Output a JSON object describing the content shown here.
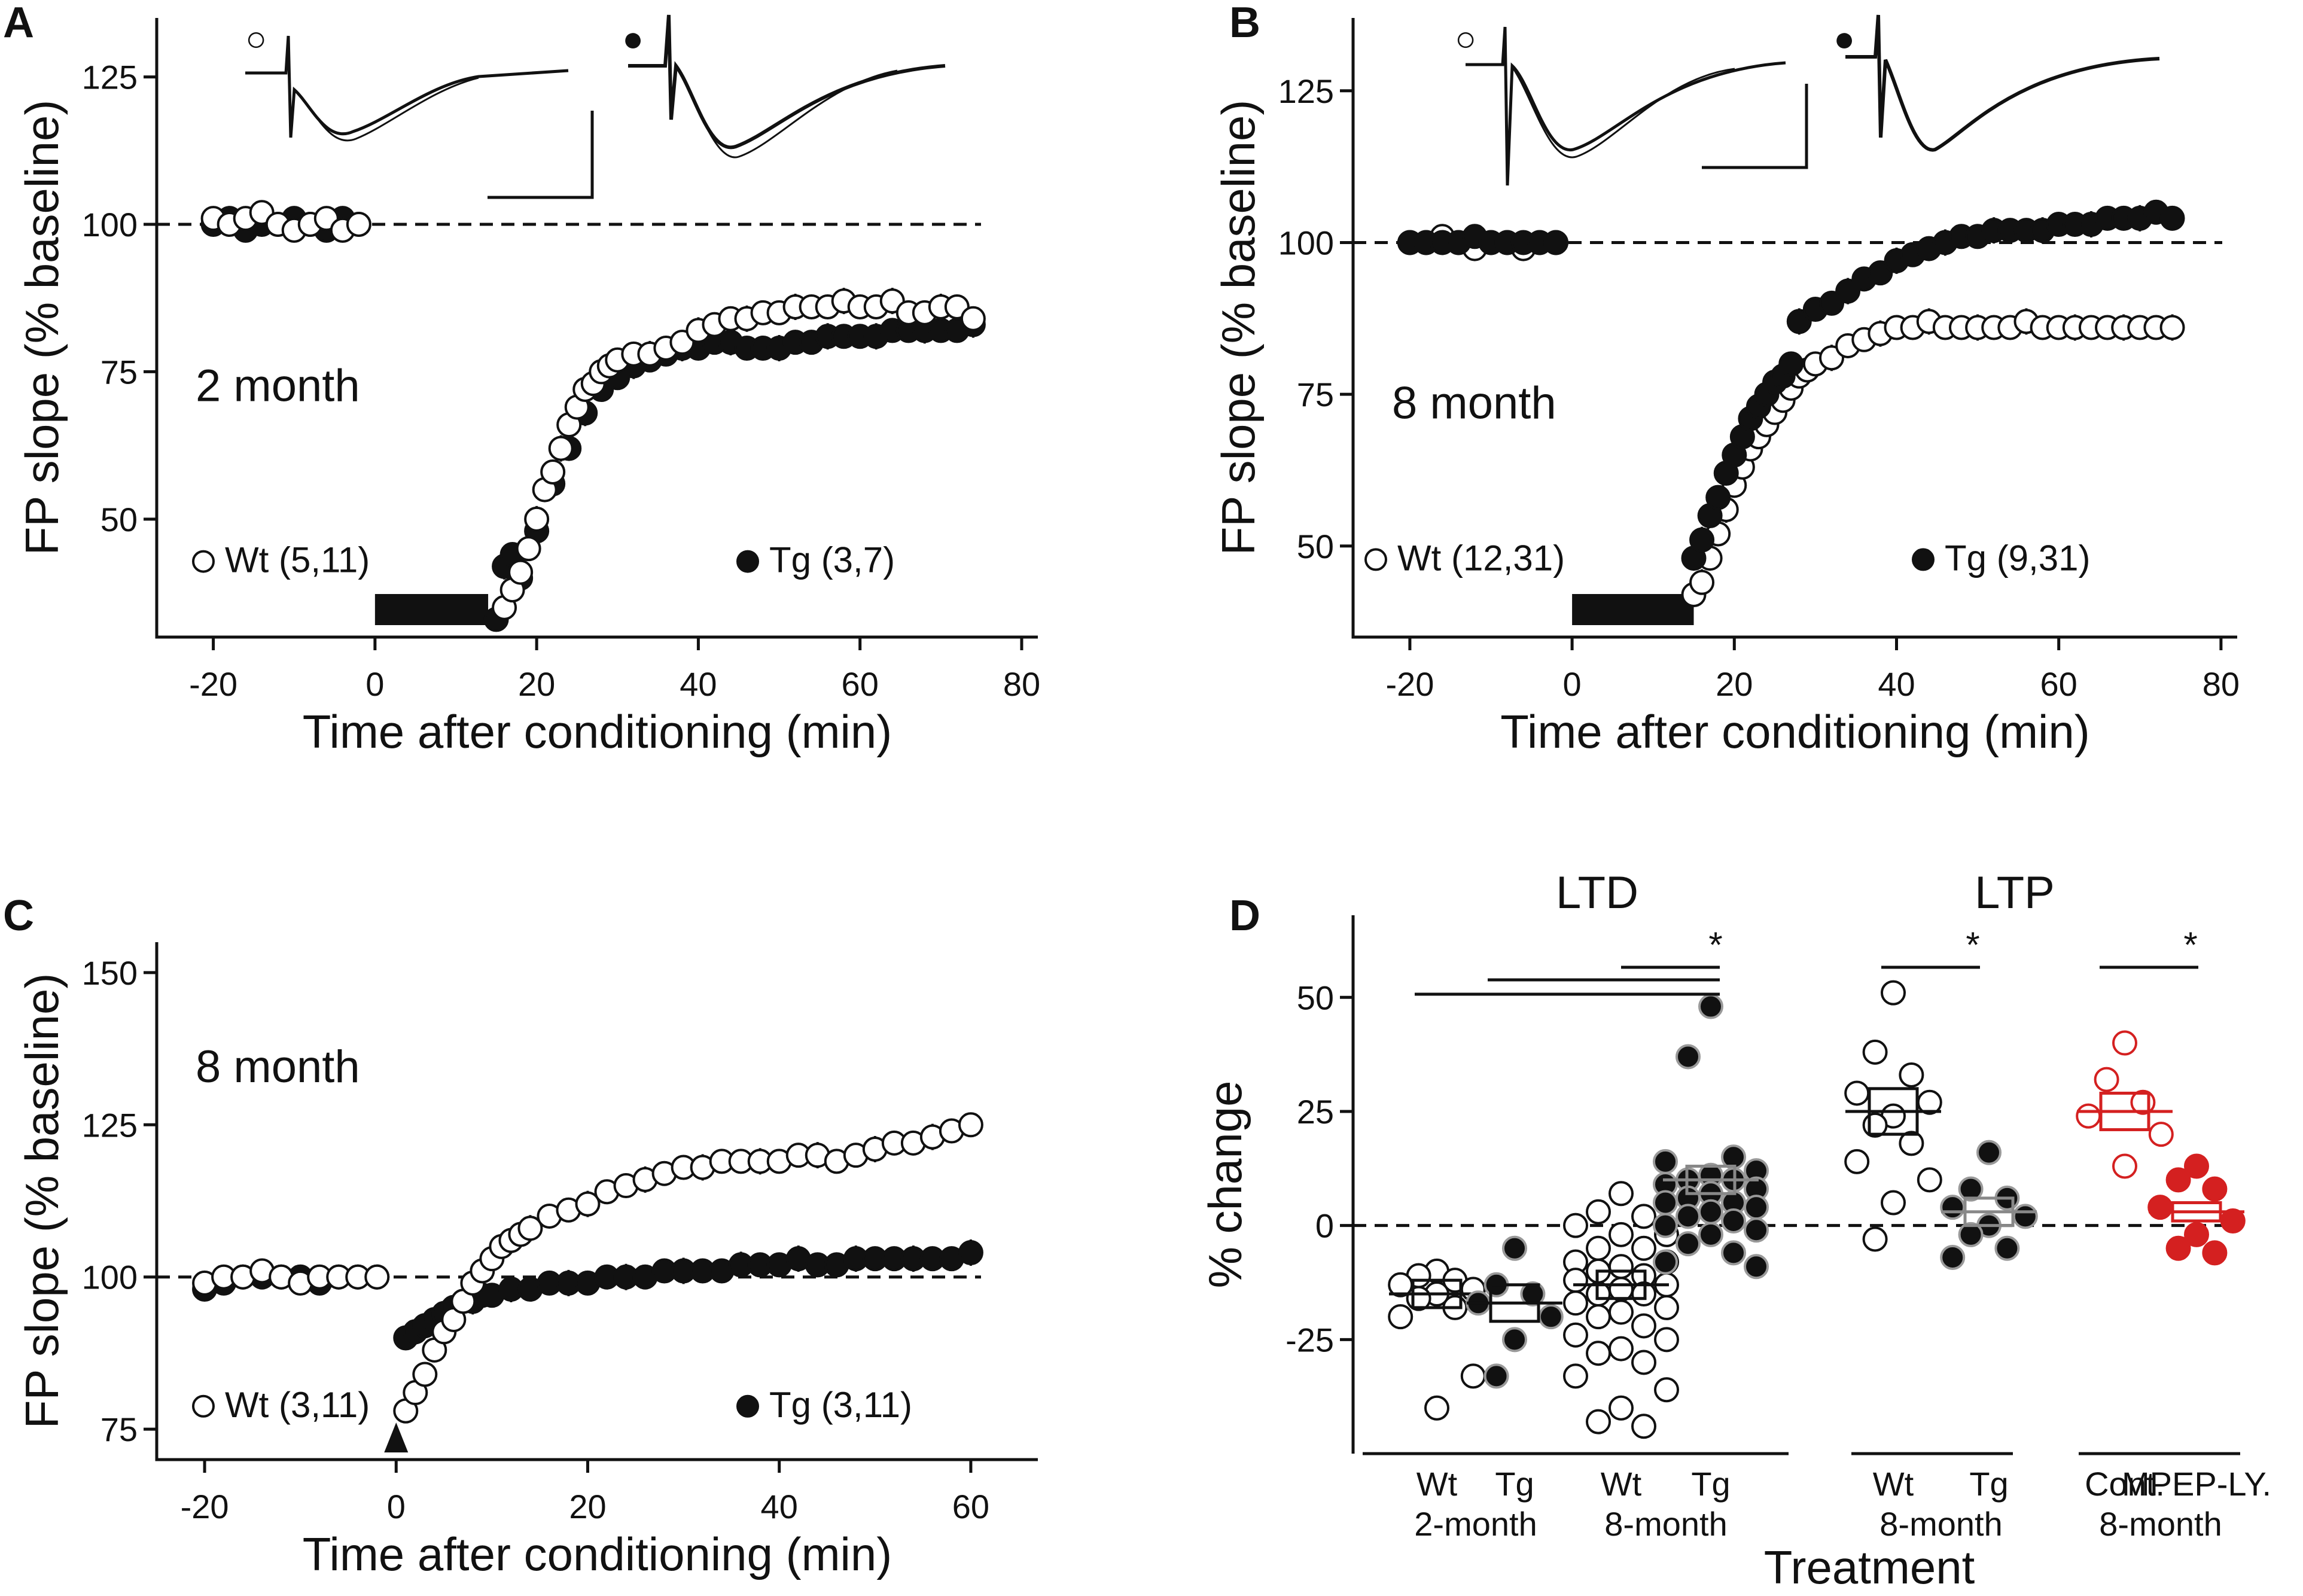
{
  "chart_data": [
    {
      "panel": "A",
      "type": "scatter",
      "age_label": "2 month",
      "xlabel": "Time after conditioning (min)",
      "ylabel": "FP slope (% baseline)",
      "xlim": [
        -27,
        82
      ],
      "ylim": [
        30,
        135
      ],
      "xticks": [
        "-20",
        "0",
        "20",
        "40",
        "60",
        "80"
      ],
      "yticks": [
        "50",
        "75",
        "100",
        "125"
      ],
      "baseline": 100,
      "conditioning_bar": [
        0,
        14
      ],
      "legend": [
        {
          "symbol": "○",
          "label": "Wt (5,11)",
          "fill": "#ffffff"
        },
        {
          "symbol": "●",
          "label": "Tg (3,7)",
          "fill": "#111111"
        }
      ],
      "series": [
        {
          "name": "Wt",
          "fill": "#ffffff",
          "x": [
            -20,
            -18,
            -16,
            -14,
            -12,
            -10,
            -8,
            -6,
            -4,
            -2,
            16,
            17,
            18,
            19,
            20,
            21,
            22,
            23,
            24,
            25,
            26,
            27,
            28,
            29,
            30,
            32,
            34,
            36,
            38,
            40,
            42,
            44,
            46,
            48,
            50,
            52,
            54,
            56,
            58,
            60,
            62,
            64,
            66,
            68,
            70,
            72,
            74
          ],
          "y": [
            101,
            100,
            101,
            102,
            100,
            99,
            100,
            101,
            99,
            100,
            35,
            38,
            41,
            45,
            50,
            55,
            58,
            62,
            66,
            69,
            72,
            73,
            75,
            76,
            77,
            78,
            78,
            79,
            80,
            82,
            83,
            84,
            84,
            85,
            85,
            86,
            86,
            86,
            87,
            86,
            86,
            87,
            85,
            85,
            86,
            86,
            84
          ]
        },
        {
          "name": "Tg",
          "fill": "#111111",
          "x": [
            -20,
            -18,
            -16,
            -14,
            -12,
            -10,
            -8,
            -6,
            -4,
            -2,
            15,
            16,
            17,
            18,
            20,
            22,
            24,
            26,
            28,
            30,
            32,
            34,
            36,
            38,
            40,
            42,
            44,
            46,
            48,
            50,
            52,
            54,
            56,
            58,
            60,
            62,
            64,
            66,
            68,
            70,
            72,
            74
          ],
          "y": [
            100,
            101,
            99,
            100,
            100,
            101,
            100,
            99,
            101,
            100,
            33,
            42,
            44,
            40,
            48,
            56,
            62,
            68,
            72,
            74,
            76,
            77,
            78,
            79,
            79,
            80,
            80,
            79,
            79,
            79,
            80,
            80,
            81,
            81,
            81,
            81,
            82,
            82,
            82,
            82,
            82,
            83
          ]
        }
      ],
      "trace_labels": [
        "○",
        "●"
      ]
    },
    {
      "panel": "B",
      "type": "scatter",
      "age_label": "8 month",
      "xlabel": "Time after conditioning (min)",
      "ylabel": "FP slope (% baseline)",
      "xlim": [
        -27,
        82
      ],
      "ylim": [
        35,
        137
      ],
      "xticks": [
        "-20",
        "0",
        "20",
        "40",
        "60",
        "80"
      ],
      "yticks": [
        "50",
        "75",
        "100",
        "125"
      ],
      "baseline": 100,
      "conditioning_bar": [
        0,
        15
      ],
      "legend": [
        {
          "symbol": "○",
          "label": "Wt (12,31)",
          "fill": "#ffffff"
        },
        {
          "symbol": "●",
          "label": "Tg (9,31)",
          "fill": "#111111"
        }
      ],
      "series": [
        {
          "name": "Wt",
          "fill": "#ffffff",
          "x": [
            -20,
            -18,
            -16,
            -14,
            -12,
            -10,
            -8,
            -6,
            -4,
            -2,
            15,
            16,
            17,
            18,
            19,
            20,
            21,
            22,
            23,
            24,
            25,
            26,
            27,
            28,
            29,
            30,
            32,
            34,
            36,
            38,
            40,
            42,
            44,
            46,
            48,
            50,
            52,
            54,
            56,
            58,
            60,
            62,
            64,
            66,
            68,
            70,
            72,
            74
          ],
          "y": [
            100,
            100,
            101,
            100,
            99,
            100,
            100,
            99,
            100,
            100,
            42,
            44,
            48,
            52,
            56,
            60,
            63,
            66,
            68,
            70,
            72,
            74,
            76,
            78,
            79,
            80,
            81,
            83,
            84,
            85,
            86,
            86,
            87,
            86,
            86,
            86,
            86,
            86,
            87,
            86,
            86,
            86,
            86,
            86,
            86,
            86,
            86,
            86
          ]
        },
        {
          "name": "Tg",
          "fill": "#111111",
          "x": [
            -20,
            -18,
            -16,
            -14,
            -12,
            -10,
            -8,
            -6,
            -4,
            -2,
            15,
            16,
            17,
            18,
            19,
            20,
            21,
            22,
            23,
            24,
            25,
            26,
            27,
            28,
            30,
            32,
            34,
            36,
            38,
            40,
            42,
            44,
            46,
            48,
            50,
            52,
            54,
            56,
            58,
            60,
            62,
            64,
            66,
            68,
            70,
            72,
            74
          ],
          "y": [
            100,
            100,
            100,
            100,
            101,
            100,
            100,
            100,
            100,
            100,
            48,
            51,
            55,
            58,
            62,
            65,
            68,
            71,
            73,
            75,
            77,
            78,
            80,
            87,
            89,
            90,
            92,
            94,
            95,
            97,
            98,
            99,
            100,
            101,
            101,
            102,
            102,
            102,
            102,
            103,
            103,
            103,
            104,
            104,
            104,
            105,
            104
          ]
        }
      ],
      "trace_labels": [
        "○",
        "●"
      ]
    },
    {
      "panel": "C",
      "type": "scatter",
      "age_label": "8 month",
      "xlabel": "Time after conditioning (min)",
      "ylabel": "FP slope (% baseline)",
      "xlim": [
        -25,
        67
      ],
      "ylim": [
        70,
        155
      ],
      "xticks": [
        "-20",
        "0",
        "20",
        "40",
        "60"
      ],
      "yticks": [
        "75",
        "100",
        "125",
        "150"
      ],
      "baseline": 100,
      "stimulus_marker": 0,
      "legend": [
        {
          "symbol": "○",
          "label": "Wt (3,11)",
          "fill": "#ffffff"
        },
        {
          "symbol": "●",
          "label": "Tg (3,11)",
          "fill": "#111111"
        }
      ],
      "series": [
        {
          "name": "Wt",
          "fill": "#ffffff",
          "x": [
            -20,
            -18,
            -16,
            -14,
            -12,
            -10,
            -8,
            -6,
            -4,
            -2,
            1,
            2,
            3,
            4,
            5,
            6,
            7,
            8,
            9,
            10,
            11,
            12,
            13,
            14,
            16,
            18,
            20,
            22,
            24,
            26,
            28,
            30,
            32,
            34,
            36,
            38,
            40,
            42,
            44,
            46,
            48,
            50,
            52,
            54,
            56,
            58,
            60
          ],
          "y": [
            99,
            100,
            100,
            101,
            100,
            99,
            100,
            100,
            100,
            100,
            78,
            81,
            84,
            88,
            91,
            93,
            96,
            99,
            101,
            103,
            105,
            106,
            107,
            108,
            110,
            111,
            112,
            114,
            115,
            116,
            117,
            118,
            118,
            119,
            119,
            119,
            119,
            120,
            120,
            119,
            120,
            121,
            122,
            122,
            123,
            124,
            125
          ]
        },
        {
          "name": "Tg",
          "fill": "#111111",
          "x": [
            -20,
            -18,
            -16,
            -14,
            -12,
            -10,
            -8,
            -6,
            -4,
            -2,
            1,
            2,
            3,
            4,
            5,
            6,
            7,
            8,
            9,
            10,
            12,
            14,
            16,
            18,
            20,
            22,
            24,
            26,
            28,
            30,
            32,
            34,
            36,
            38,
            40,
            42,
            44,
            46,
            48,
            50,
            52,
            54,
            56,
            58,
            60
          ],
          "y": [
            98,
            99,
            100,
            100,
            100,
            100,
            99,
            100,
            100,
            100,
            90,
            91,
            92,
            93,
            94,
            95,
            96,
            96,
            97,
            97,
            98,
            98,
            99,
            99,
            99,
            100,
            100,
            100,
            101,
            101,
            101,
            101,
            102,
            102,
            102,
            103,
            102,
            102,
            103,
            103,
            103,
            103,
            103,
            103,
            104
          ]
        }
      ]
    },
    {
      "panel": "D",
      "type": "scatter",
      "ylabel": "% change",
      "xlabel": "Treatment",
      "ylim": [
        -50,
        68
      ],
      "yticks": [
        "-25",
        "0",
        "25",
        "50"
      ],
      "group_headers": [
        "LTD",
        "LTP"
      ],
      "significance": "*",
      "groups": [
        {
          "label": "Wt",
          "sub": "2-month",
          "fill": "#ffffff",
          "stroke": "#111111",
          "mean": -15,
          "sem": 3,
          "values": [
            -15,
            -12,
            -10,
            -14,
            -18,
            -20,
            -11,
            -13,
            -16,
            -33,
            -40
          ]
        },
        {
          "label": "Tg",
          "sub": "2-month",
          "fill": "#111111",
          "stroke": "#111111",
          "mean": -17,
          "sem": 4,
          "values": [
            -5,
            -15,
            -20,
            -17,
            -25,
            -33,
            -13
          ]
        },
        {
          "label": "Wt",
          "sub": "8-month",
          "fill": "#ffffff",
          "stroke": "#111111",
          "mean": -13,
          "sem": 3,
          "values": [
            7,
            3,
            0,
            -2,
            -5,
            -8,
            -10,
            -12,
            -13,
            -15,
            -17,
            -20,
            -22,
            -25,
            -27,
            -30,
            -33,
            -36,
            -40,
            -44,
            -43,
            -15,
            -18,
            -5,
            -8,
            -11,
            -24,
            -2,
            -9,
            -14,
            -19,
            -28,
            2
          ]
        },
        {
          "label": "Tg",
          "sub": "8-month",
          "fill": "#111111",
          "stroke": "#888888",
          "mean": 10,
          "sem": 3,
          "values": [
            48,
            37,
            15,
            12,
            10,
            9,
            8,
            6,
            5,
            4,
            3,
            2,
            0,
            -2,
            -4,
            -6,
            -8,
            14,
            11,
            7,
            1,
            -1,
            -9,
            10,
            5
          ]
        },
        {
          "label": "Wt",
          "sub": "8-month",
          "fill": "#ffffff",
          "stroke": "#111111",
          "mean": 25,
          "sem": 5,
          "values": [
            51,
            38,
            33,
            29,
            27,
            24,
            22,
            18,
            14,
            10,
            5,
            -3
          ]
        },
        {
          "label": "Tg",
          "sub": "8-month",
          "fill": "#111111",
          "stroke": "#888888",
          "mean": 3,
          "sem": 3,
          "values": [
            16,
            8,
            6,
            4,
            2,
            0,
            -2,
            -5,
            -7
          ]
        },
        {
          "label": "Cont.",
          "sub": "8-month",
          "fill": "#ffffff",
          "stroke": "#d42020",
          "mean": 25,
          "sem": 4,
          "values": [
            40,
            32,
            27,
            24,
            20,
            13
          ]
        },
        {
          "label": "MPEP-LY.",
          "sub": "8-month",
          "fill": "#d42020",
          "stroke": "#d42020",
          "mean": 3,
          "sem": 2,
          "values": [
            13,
            10,
            8,
            4,
            1,
            -2,
            -5,
            -6
          ]
        }
      ],
      "sub_labels": [
        "2-month",
        "8-month",
        "8-month",
        "8-month"
      ]
    }
  ],
  "panel_letters": [
    "A",
    "B",
    "C",
    "D"
  ]
}
